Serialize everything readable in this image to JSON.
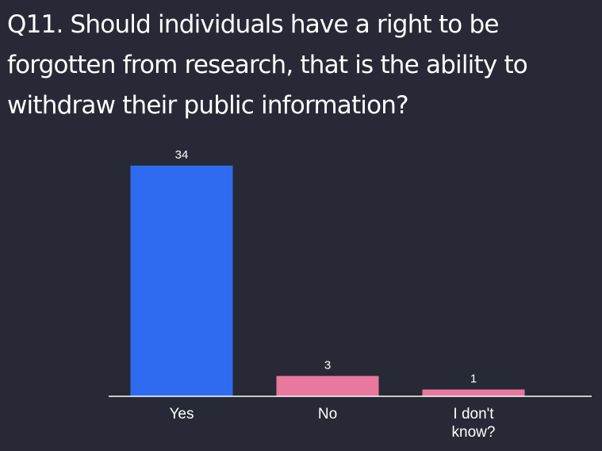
{
  "question": {
    "title": "Q11. Should individuals have a right to be forgotten from research, that is the ability to withdraw their public information?"
  },
  "chart_data": {
    "type": "bar",
    "title": "Q11. Should individuals have a right to be forgotten from research, that is the ability to withdraw their public information?",
    "categories": [
      "Yes",
      "No",
      "I don't know?"
    ],
    "category_lines": [
      [
        "Yes"
      ],
      [
        "No"
      ],
      [
        "I don't",
        "know?"
      ]
    ],
    "values": [
      34,
      3,
      1
    ],
    "colors": [
      "#2f6bf0",
      "#e8789d",
      "#e8789d"
    ],
    "ylim": [
      0,
      34
    ],
    "grid": false,
    "legend": "none"
  },
  "colors": {
    "background": "#272a36",
    "text": "#ffffff",
    "axis": "#ffffff",
    "accent_blue": "#2f6bf0",
    "accent_pink": "#e8789d"
  }
}
